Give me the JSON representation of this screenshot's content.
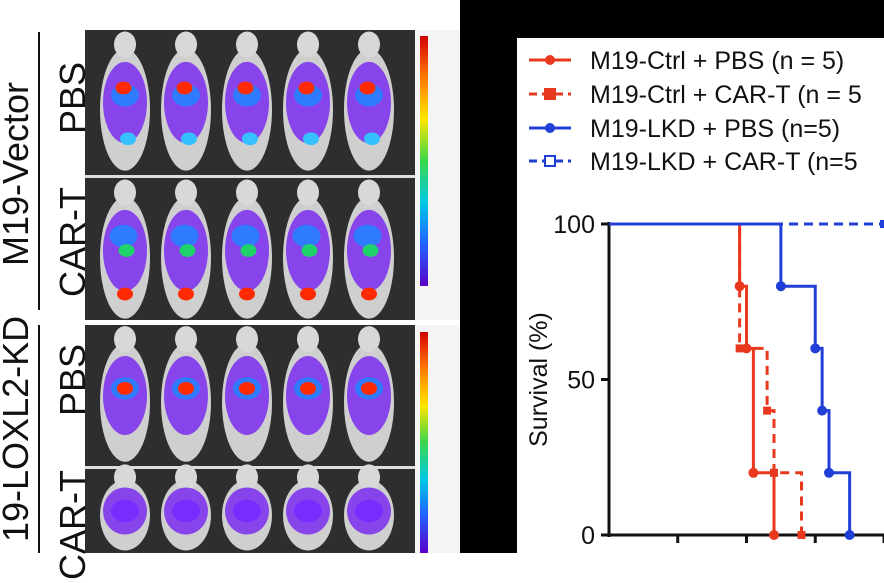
{
  "imaging": {
    "group_labels": [
      "M19-Vector",
      "19-LOXL2-KD"
    ],
    "row_labels": [
      "PBS",
      "CAR-T",
      "PBS",
      "CAR-T"
    ]
  },
  "colors": {
    "ctrl": "#e8391f",
    "lkd": "#1f3fd6"
  },
  "chart_data": {
    "type": "line",
    "subtype": "kaplan-meier",
    "ylabel": "Survival (%)",
    "xlabel": "",
    "ylim": [
      0,
      100
    ],
    "yticks": [
      "0",
      "50",
      "100"
    ],
    "legend": [
      "M19-Ctrl + PBS (n = 5)",
      "M19-Ctrl + CAR-T (n = 5",
      "M19-LKD + PBS (n=5)",
      "M19-LKD + CAR-T (n=5"
    ],
    "series": [
      {
        "name": "M19-Ctrl + PBS (n = 5)",
        "style": "solid",
        "marker": "circle",
        "color": "#e8391f",
        "x": [
          0,
          19,
          20,
          21,
          24
        ],
        "y": [
          100,
          80,
          60,
          20,
          0
        ]
      },
      {
        "name": "M19-Ctrl + CAR-T (n = 5",
        "style": "dashed",
        "marker": "square",
        "color": "#e8391f",
        "x": [
          0,
          19,
          23,
          24,
          28
        ],
        "y": [
          100,
          60,
          40,
          20,
          0
        ]
      },
      {
        "name": "M19-LKD + PBS (n=5)",
        "style": "solid",
        "marker": "circle",
        "color": "#1f3fd6",
        "x": [
          0,
          25,
          30,
          31,
          32,
          35
        ],
        "y": [
          100,
          80,
          60,
          40,
          20,
          0
        ]
      },
      {
        "name": "M19-LKD + CAR-T (n=5",
        "style": "dashed",
        "marker": "square",
        "color": "#1f3fd6",
        "x": [
          0,
          40
        ],
        "y": [
          100,
          100
        ]
      }
    ]
  }
}
